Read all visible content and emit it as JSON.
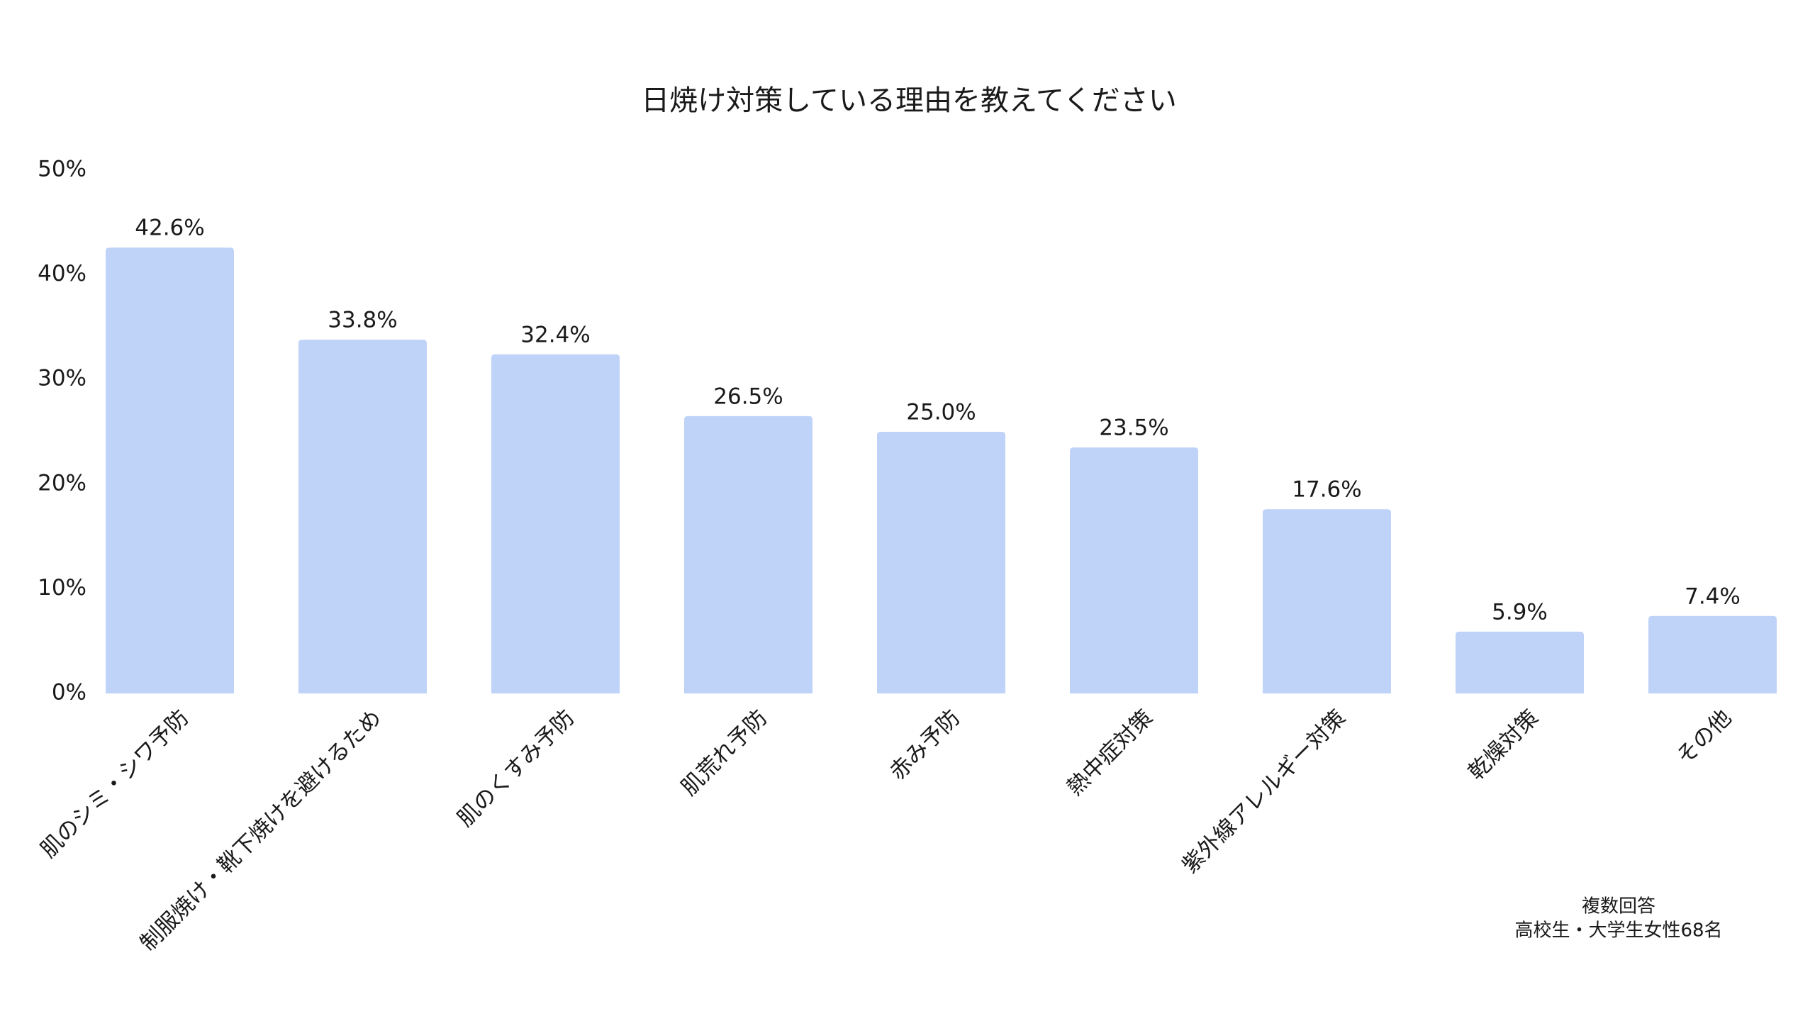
{
  "chart_data": {
    "type": "bar",
    "title": "日焼け対策している理由を教えてください",
    "categories": [
      "肌のシミ・シワ予防",
      "制服焼け・靴下焼けを避けるため",
      "肌のくすみ予防",
      "肌荒れ予防",
      "赤み予防",
      "熱中症対策",
      "紫外線アレルギー対策",
      "乾燥対策",
      "その他"
    ],
    "values": [
      42.6,
      33.8,
      32.4,
      26.5,
      25.0,
      23.5,
      17.6,
      5.9,
      7.4
    ],
    "value_labels": [
      "42.6%",
      "33.8%",
      "32.4%",
      "26.5%",
      "25.0%",
      "23.5%",
      "17.6%",
      "5.9%",
      "7.4%"
    ],
    "color": "#bfd2f8",
    "ylim": [
      0,
      50
    ],
    "yticks": [
      {
        "value": 0,
        "label": "0%"
      },
      {
        "value": 10,
        "label": "10%"
      },
      {
        "value": 20,
        "label": "20%"
      },
      {
        "value": 30,
        "label": "30%"
      },
      {
        "value": 40,
        "label": "40%"
      },
      {
        "value": 50,
        "label": "50%"
      }
    ],
    "grid": false,
    "notes": [
      "複数回答",
      "高校生・大学生女性68名"
    ]
  }
}
